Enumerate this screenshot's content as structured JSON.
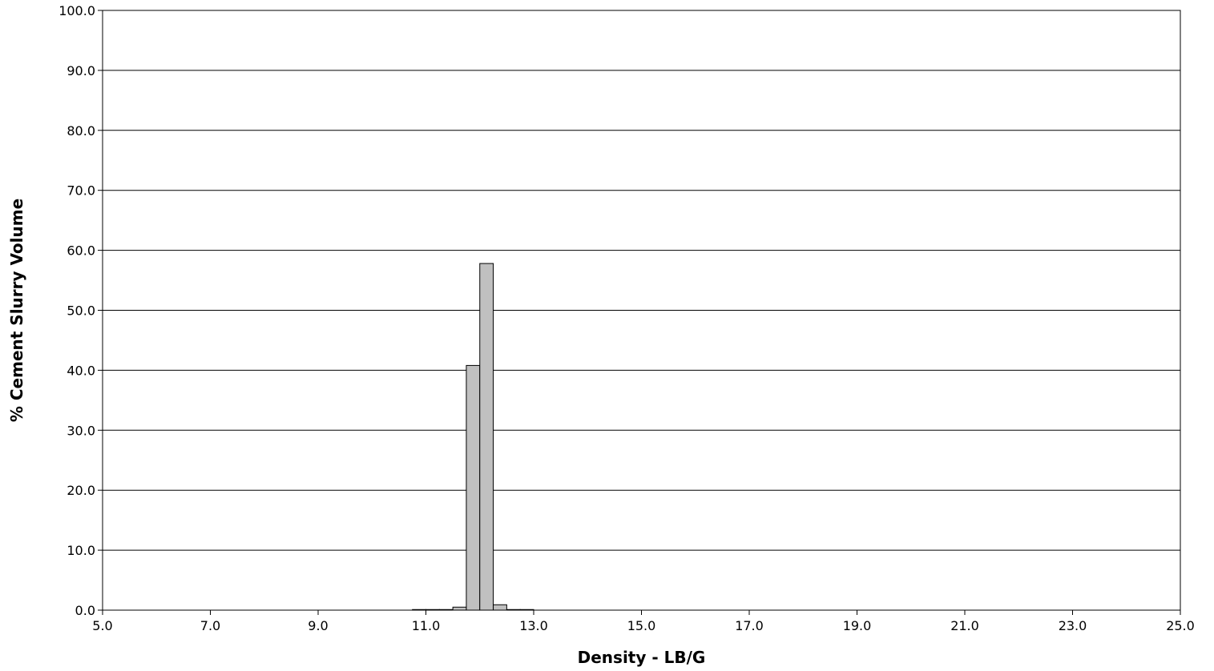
{
  "chart_data": {
    "type": "bar",
    "title": "",
    "xlabel": "Density - LB/G",
    "ylabel": "% Cement Slurry Volume",
    "xlim": [
      5.0,
      25.0
    ],
    "ylim": [
      0.0,
      100.0
    ],
    "x_ticks": [
      "5.0",
      "7.0",
      "9.0",
      "11.0",
      "13.0",
      "15.0",
      "17.0",
      "19.0",
      "21.0",
      "23.0",
      "25.0"
    ],
    "y_ticks": [
      "0.0",
      "10.0",
      "20.0",
      "30.0",
      "40.0",
      "50.0",
      "60.0",
      "70.0",
      "80.0",
      "90.0",
      "100.0"
    ],
    "grid": "horizontal",
    "bar_color": "#c0c0c0",
    "bin_width": 0.25,
    "bins": [
      {
        "x": 10.875,
        "value": 0.1
      },
      {
        "x": 11.125,
        "value": 0.1
      },
      {
        "x": 11.375,
        "value": 0.1
      },
      {
        "x": 11.625,
        "value": 0.5
      },
      {
        "x": 11.875,
        "value": 40.8
      },
      {
        "x": 12.125,
        "value": 57.8
      },
      {
        "x": 12.375,
        "value": 0.9
      },
      {
        "x": 12.625,
        "value": 0.1
      },
      {
        "x": 12.875,
        "value": 0.1
      }
    ]
  }
}
